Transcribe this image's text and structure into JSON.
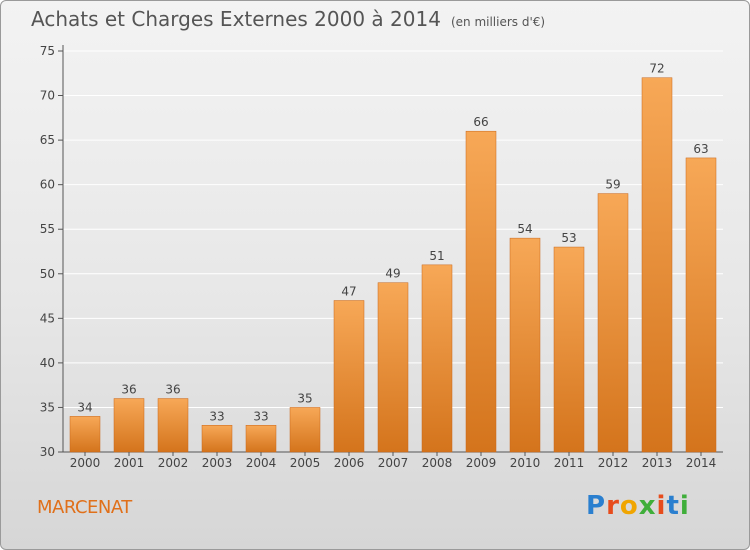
{
  "header": {
    "title": "Achats et Charges Externes 2000 à 2014",
    "subtitle": "(en milliers d'€)"
  },
  "footer": {
    "commune": "MARCENAT",
    "logo": "Proxiti",
    "logo_letters": [
      {
        "char": "P",
        "color": "#2a7fcf"
      },
      {
        "char": "r",
        "color": "#e74c1c"
      },
      {
        "char": "o",
        "color": "#f0a500"
      },
      {
        "char": "x",
        "color": "#3fae3a"
      },
      {
        "char": "i",
        "color": "#e74c1c"
      },
      {
        "char": "t",
        "color": "#2a7fcf"
      },
      {
        "char": "i",
        "color": "#3fae3a"
      }
    ]
  },
  "colors": {
    "bar_top": "#f7a857",
    "bar_bottom": "#d4741c",
    "bar_stroke": "#c8661a",
    "grid": "#ffffff",
    "axis_text": "#444444"
  },
  "chart_data": {
    "type": "bar",
    "categories": [
      "2000",
      "2001",
      "2002",
      "2003",
      "2004",
      "2005",
      "2006",
      "2007",
      "2008",
      "2009",
      "2010",
      "2011",
      "2012",
      "2013",
      "2014"
    ],
    "values": [
      34,
      36,
      36,
      33,
      33,
      35,
      47,
      49,
      51,
      66,
      54,
      53,
      59,
      72,
      63
    ],
    "ylim": [
      30,
      75
    ],
    "yticks": [
      30,
      35,
      40,
      45,
      50,
      55,
      60,
      65,
      70,
      75
    ],
    "grid": true,
    "data_labels": true
  }
}
